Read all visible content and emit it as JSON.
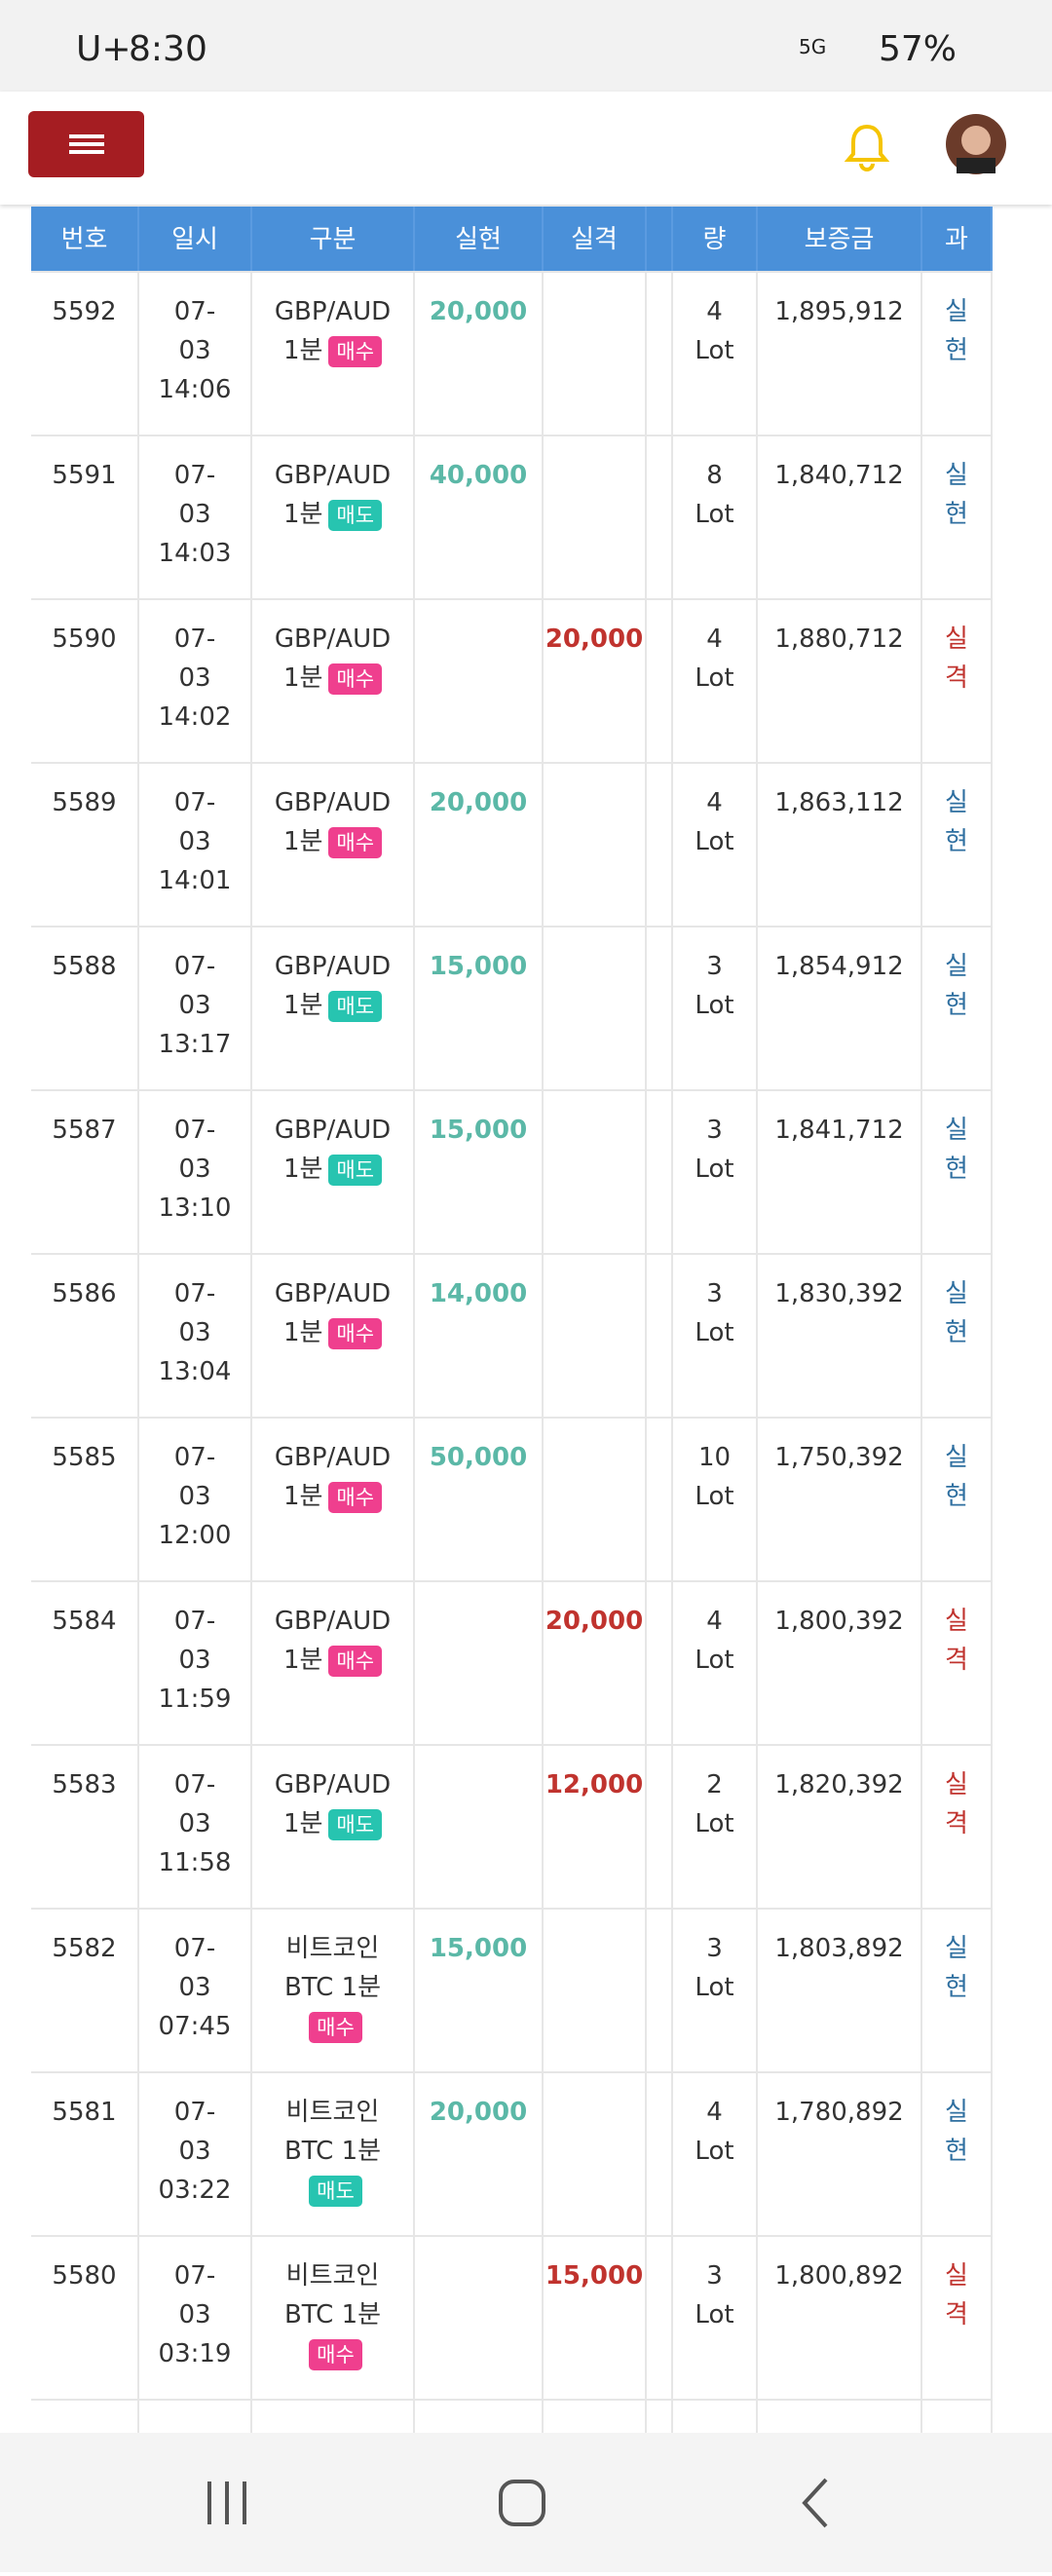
{
  "status_bar": {
    "carrier": "U+",
    "time": "8:30",
    "network": "5G",
    "battery": "57%"
  },
  "table": {
    "headers": [
      "번호",
      "일시",
      "구분",
      "실현",
      "실격",
      "",
      "량",
      "보증금",
      "과"
    ],
    "rows": [
      {
        "no": "5592",
        "date": [
          "07-",
          "03",
          "14:06"
        ],
        "product": [
          "GBP/AUD",
          "1분"
        ],
        "side": "매수",
        "profit": "20,000",
        "loss": null,
        "qty": [
          "4",
          "Lot"
        ],
        "margin": "1,895,912",
        "result": "실현"
      },
      {
        "no": "5591",
        "date": [
          "07-",
          "03",
          "14:03"
        ],
        "product": [
          "GBP/AUD",
          "1분"
        ],
        "side": "매도",
        "profit": "40,000",
        "loss": null,
        "qty": [
          "8",
          "Lot"
        ],
        "margin": "1,840,712",
        "result": "실현"
      },
      {
        "no": "5590",
        "date": [
          "07-",
          "03",
          "14:02"
        ],
        "product": [
          "GBP/AUD",
          "1분"
        ],
        "side": "매수",
        "profit": null,
        "loss": "20,000",
        "qty": [
          "4",
          "Lot"
        ],
        "margin": "1,880,712",
        "result": "실격"
      },
      {
        "no": "5589",
        "date": [
          "07-",
          "03",
          "14:01"
        ],
        "product": [
          "GBP/AUD",
          "1분"
        ],
        "side": "매수",
        "profit": "20,000",
        "loss": null,
        "qty": [
          "4",
          "Lot"
        ],
        "margin": "1,863,112",
        "result": "실현"
      },
      {
        "no": "5588",
        "date": [
          "07-",
          "03",
          "13:17"
        ],
        "product": [
          "GBP/AUD",
          "1분"
        ],
        "side": "매도",
        "profit": "15,000",
        "loss": null,
        "qty": [
          "3",
          "Lot"
        ],
        "margin": "1,854,912",
        "result": "실현"
      },
      {
        "no": "5587",
        "date": [
          "07-",
          "03",
          "13:10"
        ],
        "product": [
          "GBP/AUD",
          "1분"
        ],
        "side": "매도",
        "profit": "15,000",
        "loss": null,
        "qty": [
          "3",
          "Lot"
        ],
        "margin": "1,841,712",
        "result": "실현"
      },
      {
        "no": "5586",
        "date": [
          "07-",
          "03",
          "13:04"
        ],
        "product": [
          "GBP/AUD",
          "1분"
        ],
        "side": "매수",
        "profit": "14,000",
        "loss": null,
        "qty": [
          "3",
          "Lot"
        ],
        "margin": "1,830,392",
        "result": "실현"
      },
      {
        "no": "5585",
        "date": [
          "07-",
          "03",
          "12:00"
        ],
        "product": [
          "GBP/AUD",
          "1분"
        ],
        "side": "매수",
        "profit": "50,000",
        "loss": null,
        "qty": [
          "10",
          "Lot"
        ],
        "margin": "1,750,392",
        "result": "실현"
      },
      {
        "no": "5584",
        "date": [
          "07-",
          "03",
          "11:59"
        ],
        "product": [
          "GBP/AUD",
          "1분"
        ],
        "side": "매수",
        "profit": null,
        "loss": "20,000",
        "qty": [
          "4",
          "Lot"
        ],
        "margin": "1,800,392",
        "result": "실격"
      },
      {
        "no": "5583",
        "date": [
          "07-",
          "03",
          "11:58"
        ],
        "product": [
          "GBP/AUD",
          "1분"
        ],
        "side": "매도",
        "profit": null,
        "loss": "12,000",
        "qty": [
          "2",
          "Lot"
        ],
        "margin": "1,820,392",
        "result": "실격"
      },
      {
        "no": "5582",
        "date": [
          "07-",
          "03",
          "07:45"
        ],
        "product": [
          "비트코인",
          "BTC 1분"
        ],
        "side": "매수",
        "profit": "15,000",
        "loss": null,
        "qty": [
          "3",
          "Lot"
        ],
        "margin": "1,803,892",
        "result": "실현"
      },
      {
        "no": "5581",
        "date": [
          "07-",
          "03",
          "03:22"
        ],
        "product": [
          "비트코인",
          "BTC 1분"
        ],
        "side": "매도",
        "profit": "20,000",
        "loss": null,
        "qty": [
          "4",
          "Lot"
        ],
        "margin": "1,780,892",
        "result": "실현"
      },
      {
        "no": "5580",
        "date": [
          "07-",
          "03",
          "03:19"
        ],
        "product": [
          "비트코인",
          "BTC 1분"
        ],
        "side": "매수",
        "profit": null,
        "loss": "15,000",
        "qty": [
          "3",
          "Lot"
        ],
        "margin": "1,800,892",
        "result": "실격"
      }
    ]
  }
}
